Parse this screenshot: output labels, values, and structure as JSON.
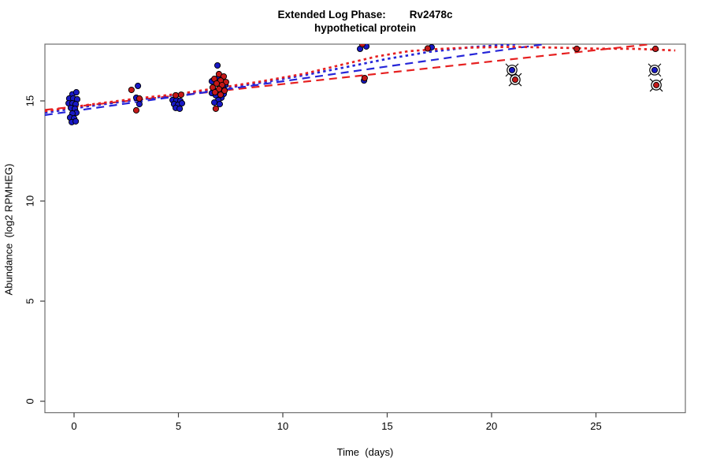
{
  "title": {
    "line1": "Extended Log Phase:        Rv2478c",
    "line2": "hypothetical protein"
  },
  "axes": {
    "x": {
      "label": "Time  (days)",
      "ticks": [
        "0",
        "5",
        "10",
        "15",
        "20",
        "25"
      ],
      "tick_values": [
        0,
        5,
        10,
        15,
        20,
        25
      ]
    },
    "y": {
      "label": "Abundance  (log2 RPMHEG)",
      "ticks": [
        "0",
        "5",
        "10",
        "15"
      ],
      "tick_values": [
        0,
        5,
        10,
        15
      ]
    }
  },
  "colors": {
    "point_blue": "#1818c4",
    "point_red": "#c41818",
    "line_blue": "#2525d8",
    "line_red": "#e62020",
    "box": "#6e6e6e",
    "tick": "#404040",
    "background": "#ffffff"
  },
  "chart_data": {
    "type": "scatter",
    "title": "Extended Log Phase: Rv2478c — hypothetical protein",
    "xlabel": "Time  (days)",
    "ylabel": "Abundance  (log2 RPMHEG)",
    "xlim": [
      -1.4,
      29.3
    ],
    "ylim": [
      -0.57,
      17.83
    ],
    "grid": false,
    "legend": "none",
    "series": [
      {
        "name": "replicate-blue",
        "marker": "filled-circle",
        "color": "#1818c4",
        "points": [
          [
            -0.08,
            15.33
          ],
          [
            0.11,
            15.43
          ],
          [
            -0.23,
            15.12
          ],
          [
            -0.04,
            15.12
          ],
          [
            0.15,
            15.08
          ],
          [
            -0.26,
            14.88
          ],
          [
            -0.08,
            14.88
          ],
          [
            0.08,
            14.84
          ],
          [
            -0.15,
            14.65
          ],
          [
            0.04,
            14.61
          ],
          [
            0.11,
            14.41
          ],
          [
            -0.08,
            14.37
          ],
          [
            -0.19,
            14.17
          ],
          [
            0.0,
            14.13
          ],
          [
            -0.11,
            13.94
          ],
          [
            0.08,
            13.98
          ],
          [
            3.06,
            15.75
          ],
          [
            2.98,
            15.16
          ],
          [
            3.13,
            14.84
          ],
          [
            4.72,
            15.04
          ],
          [
            4.91,
            15.04
          ],
          [
            5.09,
            15.0
          ],
          [
            4.79,
            14.84
          ],
          [
            4.98,
            14.8
          ],
          [
            5.17,
            14.88
          ],
          [
            4.87,
            14.65
          ],
          [
            5.06,
            14.61
          ],
          [
            6.87,
            16.77
          ],
          [
            6.91,
            16.14
          ],
          [
            6.6,
            15.98
          ],
          [
            7.25,
            15.79
          ],
          [
            7.13,
            15.67
          ],
          [
            6.68,
            15.55
          ],
          [
            6.98,
            15.47
          ],
          [
            6.6,
            15.39
          ],
          [
            7.17,
            15.35
          ],
          [
            6.79,
            15.28
          ],
          [
            7.06,
            15.16
          ],
          [
            6.91,
            15.04
          ],
          [
            6.72,
            14.92
          ],
          [
            6.98,
            14.84
          ],
          [
            13.7,
            17.6
          ],
          [
            14.0,
            17.72
          ],
          [
            13.89,
            16.02
          ],
          [
            17.13,
            17.68
          ]
        ]
      },
      {
        "name": "replicate-red",
        "marker": "filled-circle",
        "color": "#c41818",
        "points": [
          [
            2.75,
            15.55
          ],
          [
            3.13,
            15.12
          ],
          [
            2.98,
            14.53
          ],
          [
            4.87,
            15.28
          ],
          [
            5.13,
            15.31
          ],
          [
            6.94,
            16.34
          ],
          [
            7.17,
            16.22
          ],
          [
            6.72,
            16.1
          ],
          [
            7.02,
            16.02
          ],
          [
            7.28,
            15.94
          ],
          [
            6.83,
            15.87
          ],
          [
            7.09,
            15.79
          ],
          [
            6.64,
            15.67
          ],
          [
            6.94,
            15.59
          ],
          [
            7.21,
            15.51
          ],
          [
            6.75,
            15.43
          ],
          [
            7.02,
            15.31
          ],
          [
            6.79,
            14.61
          ],
          [
            13.81,
            17.83
          ],
          [
            13.92,
            16.14
          ],
          [
            16.94,
            17.62
          ],
          [
            24.08,
            17.6
          ],
          [
            27.85,
            17.6
          ]
        ]
      },
      {
        "name": "flagged-blue",
        "marker": "circled-x-dot",
        "color": "#1818c4",
        "points": [
          [
            20.98,
            16.54
          ],
          [
            27.81,
            16.54
          ]
        ]
      },
      {
        "name": "flagged-red",
        "marker": "circled-x-dot",
        "color": "#c41818",
        "points": [
          [
            21.13,
            16.06
          ],
          [
            27.89,
            15.79
          ]
        ]
      }
    ],
    "fits": [
      {
        "name": "red-linear-fit",
        "style": "dashed",
        "color": "#e62020",
        "points": [
          [
            -1.4,
            14.55
          ],
          [
            27.6,
            17.83
          ]
        ]
      },
      {
        "name": "blue-linear-fit",
        "style": "dashed",
        "color": "#2525d8",
        "points": [
          [
            -1.4,
            14.29
          ],
          [
            22.5,
            17.83
          ]
        ]
      },
      {
        "name": "blue-loess-fit",
        "style": "dotted",
        "color": "#2525d8",
        "points": [
          [
            -1.4,
            14.41
          ],
          [
            1,
            14.78
          ],
          [
            3,
            15.05
          ],
          [
            5,
            15.31
          ],
          [
            7,
            15.6
          ],
          [
            9,
            15.92
          ],
          [
            11,
            16.28
          ],
          [
            13,
            16.68
          ],
          [
            15,
            17.1
          ],
          [
            17,
            17.45
          ],
          [
            19,
            17.68
          ],
          [
            20.5,
            17.79
          ],
          [
            21.3,
            17.83
          ]
        ]
      },
      {
        "name": "red-loess-fit",
        "style": "dotted",
        "color": "#e62020",
        "points": [
          [
            -1.4,
            14.49
          ],
          [
            1,
            14.85
          ],
          [
            3,
            15.12
          ],
          [
            5,
            15.35
          ],
          [
            7,
            15.66
          ],
          [
            9,
            15.98
          ],
          [
            11,
            16.35
          ],
          [
            13,
            16.85
          ],
          [
            14.5,
            17.22
          ],
          [
            16,
            17.48
          ],
          [
            17.5,
            17.6
          ],
          [
            19,
            17.66
          ],
          [
            21,
            17.7
          ],
          [
            23,
            17.66
          ],
          [
            25,
            17.61
          ],
          [
            27,
            17.6
          ],
          [
            28.8,
            17.52
          ]
        ]
      }
    ]
  }
}
